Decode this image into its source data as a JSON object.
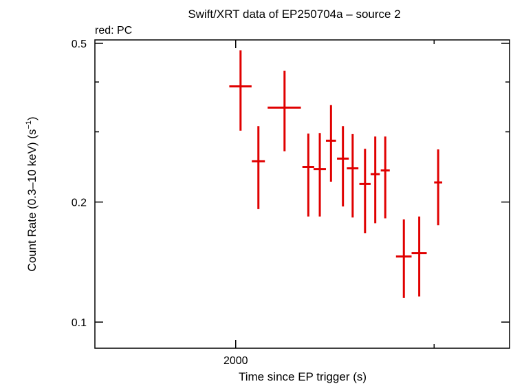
{
  "chart_data": {
    "type": "scatter",
    "title": "Swift/XRT data of EP250704a – source 2",
    "subtitle": "red: PC",
    "xlabel": "Time since EP trigger (s)",
    "ylabel": "Count Rate (0.3–10 keV) (s",
    "ylabel_sup": "−1",
    "ylabel_close": ")",
    "xscale": "log",
    "yscale": "log",
    "xlim": [
      1500,
      3500
    ],
    "ylim": [
      0.086,
      0.51
    ],
    "x_tick_labels": [
      {
        "value": 2000,
        "label": "2000"
      }
    ],
    "x_minor_ticks": [
      3000
    ],
    "y_tick_labels": [
      {
        "value": 0.1,
        "label": "0.1"
      },
      {
        "value": 0.2,
        "label": "0.2"
      },
      {
        "value": 0.5,
        "label": "0.5"
      }
    ],
    "y_minor_ticks": [
      0.3,
      0.4
    ],
    "series": [
      {
        "color": "#e00000",
        "points": [
          {
            "x": 2020,
            "xerr": [
              46,
              46
            ],
            "y": 0.39,
            "yerr": [
              0.088,
              0.09
            ]
          },
          {
            "x": 2095,
            "xerr": [
              28,
              28
            ],
            "y": 0.253,
            "yerr": [
              0.061,
              0.057
            ]
          },
          {
            "x": 2210,
            "xerr": [
              75,
              75
            ],
            "y": 0.345,
            "yerr": [
              0.077,
              0.082
            ]
          },
          {
            "x": 2320,
            "xerr": [
              28,
              28
            ],
            "y": 0.245,
            "yerr": [
              0.061,
              0.052
            ]
          },
          {
            "x": 2375,
            "xerr": [
              30,
              30
            ],
            "y": 0.242,
            "yerr": [
              0.058,
              0.056
            ]
          },
          {
            "x": 2430,
            "xerr": [
              25,
              25
            ],
            "y": 0.285,
            "yerr": [
              0.06,
              0.065
            ]
          },
          {
            "x": 2490,
            "xerr": [
              30,
              30
            ],
            "y": 0.257,
            "yerr": [
              0.062,
              0.053
            ]
          },
          {
            "x": 2540,
            "xerr": [
              30,
              30
            ],
            "y": 0.243,
            "yerr": [
              0.06,
              0.053
            ]
          },
          {
            "x": 2605,
            "xerr": [
              30,
              30
            ],
            "y": 0.222,
            "yerr": [
              0.055,
              0.05
            ]
          },
          {
            "x": 2660,
            "xerr": [
              25,
              25
            ],
            "y": 0.235,
            "yerr": [
              0.058,
              0.057
            ]
          },
          {
            "x": 2715,
            "xerr": [
              25,
              25
            ],
            "y": 0.24,
            "yerr": [
              0.058,
              0.052
            ]
          },
          {
            "x": 2820,
            "xerr": [
              45,
              45
            ],
            "y": 0.146,
            "yerr": [
              0.031,
              0.035
            ]
          },
          {
            "x": 2910,
            "xerr": [
              45,
              45
            ],
            "y": 0.149,
            "yerr": [
              0.033,
              0.035
            ]
          },
          {
            "x": 3025,
            "xerr": [
              25,
              25
            ],
            "y": 0.224,
            "yerr": [
              0.049,
              0.047
            ]
          }
        ]
      }
    ]
  }
}
